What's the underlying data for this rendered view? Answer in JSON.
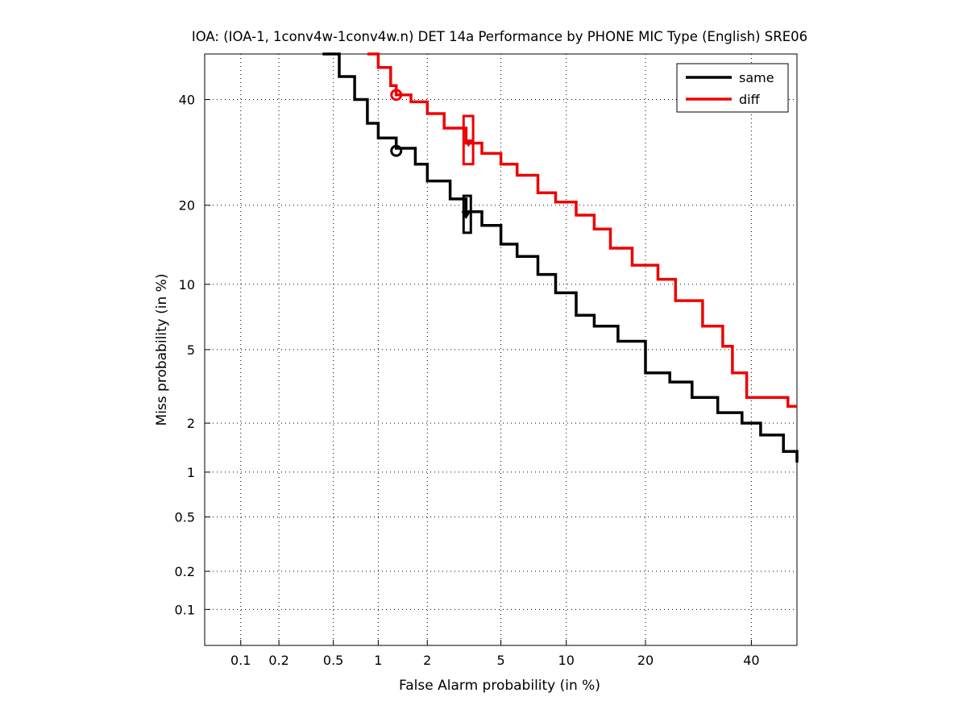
{
  "chart_data": {
    "type": "line",
    "title": "IOA: (IOA-1, 1conv4w-1conv4w.n) DET 14a Performance by PHONE MIC Type (English) SRE06",
    "xlabel": "False Alarm probability (in %)",
    "ylabel": "Miss probability (in %)",
    "xscale": "normal-deviate",
    "yscale": "normal-deviate",
    "xlim": [
      0.05,
      50
    ],
    "ylim": [
      0.05,
      50
    ],
    "xticks": [
      "0.1",
      "0.2",
      "0.5",
      "1",
      "2",
      "5",
      "10",
      "20",
      "40"
    ],
    "yticks": [
      "0.1",
      "0.2",
      "0.5",
      "1",
      "2",
      "5",
      "10",
      "20",
      "40"
    ],
    "grid": true,
    "legend_position": "top-right",
    "series": [
      {
        "name": "same",
        "color": "#000000",
        "points": [
          [
            0.42,
            50
          ],
          [
            0.55,
            45
          ],
          [
            0.7,
            40
          ],
          [
            0.85,
            35
          ],
          [
            1.0,
            32
          ],
          [
            1.3,
            30
          ],
          [
            1.7,
            27
          ],
          [
            2.0,
            24
          ],
          [
            2.7,
            21
          ],
          [
            3.3,
            19
          ],
          [
            4.0,
            17
          ],
          [
            5.0,
            14.5
          ],
          [
            6.0,
            13
          ],
          [
            7.5,
            11
          ],
          [
            9.0,
            9.2
          ],
          [
            11.0,
            7.3
          ],
          [
            13.0,
            6.5
          ],
          [
            16.0,
            5.5
          ],
          [
            20.0,
            3.8
          ],
          [
            24.0,
            3.4
          ],
          [
            28.0,
            2.8
          ],
          [
            33.0,
            2.3
          ],
          [
            38.0,
            2.0
          ],
          [
            42.0,
            1.7
          ],
          [
            47.0,
            1.35
          ],
          [
            50.0,
            1.15
          ]
        ],
        "min_dcf": {
          "x": 1.3,
          "y": 29.5
        },
        "act_dcf": {
          "x": 3.3,
          "y": 18.5,
          "box_x": [
            3.2,
            3.5
          ],
          "box_y": [
            16.0,
            21.5
          ]
        }
      },
      {
        "name": "diff",
        "color": "#ee0000",
        "points": [
          [
            0.85,
            50
          ],
          [
            1.0,
            47
          ],
          [
            1.2,
            43
          ],
          [
            1.3,
            41
          ],
          [
            1.6,
            39.5
          ],
          [
            2.0,
            37
          ],
          [
            2.5,
            34
          ],
          [
            3.3,
            31
          ],
          [
            4.0,
            29
          ],
          [
            5.0,
            27
          ],
          [
            6.0,
            25
          ],
          [
            7.5,
            22
          ],
          [
            9.0,
            20.5
          ],
          [
            11.0,
            18.5
          ],
          [
            13.0,
            16.5
          ],
          [
            15.0,
            14
          ],
          [
            18.0,
            12
          ],
          [
            22.0,
            10.5
          ],
          [
            25.0,
            8.5
          ],
          [
            30.0,
            6.5
          ],
          [
            34.0,
            5.2
          ],
          [
            36.0,
            3.8
          ],
          [
            39.0,
            2.8
          ],
          [
            46.0,
            2.8
          ],
          [
            48.0,
            2.5
          ],
          [
            50.0,
            2.5
          ]
        ],
        "min_dcf": {
          "x": 1.3,
          "y": 41
        },
        "act_dcf": {
          "x": 3.4,
          "y": 31,
          "box_x": [
            3.2,
            3.6
          ],
          "box_y": [
            27.0,
            36.5
          ]
        }
      }
    ]
  }
}
